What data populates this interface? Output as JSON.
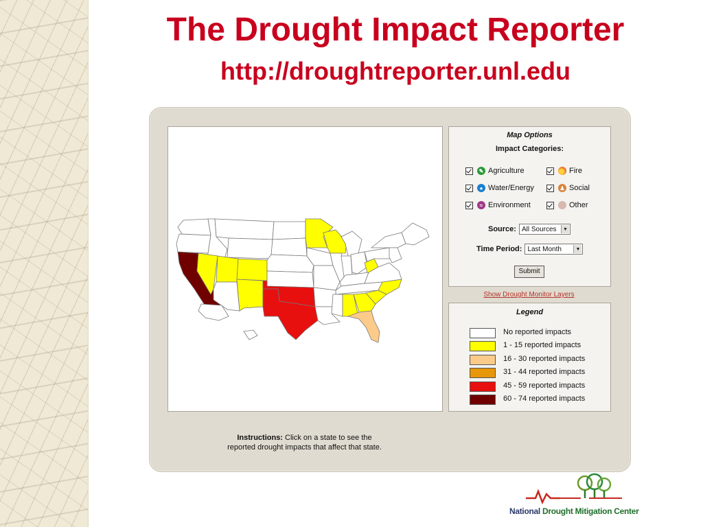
{
  "slide": {
    "title": "The Drought Impact Reporter",
    "url": "http://droughtreporter.unl.edu"
  },
  "map_options": {
    "title": "Map Options",
    "categories_label": "Impact Categories:",
    "categories": [
      {
        "label": "Agriculture",
        "checked": true,
        "icon": "leaf-icon",
        "color": "#2a9a3a"
      },
      {
        "label": "Fire",
        "checked": true,
        "icon": "fire-icon",
        "color": "#e8622a"
      },
      {
        "label": "Water/Energy",
        "checked": true,
        "icon": "water-drop-icon",
        "color": "#1a7fd0"
      },
      {
        "label": "Social",
        "checked": true,
        "icon": "social-icon",
        "color": "#d9843a"
      },
      {
        "label": "Environment",
        "checked": true,
        "icon": "environment-icon",
        "color": "#a0388a"
      },
      {
        "label": "Other",
        "checked": true,
        "icon": "other-icon",
        "color": "#d8b8b0"
      }
    ],
    "source_label": "Source:",
    "source_value": "All Sources",
    "time_label": "Time Period:",
    "time_value": "Last Month",
    "submit_label": "Submit"
  },
  "drought_layers_link": "Show Drought Monitor Layers",
  "legend": {
    "title": "Legend",
    "items": [
      {
        "label": "No reported impacts",
        "color": "#ffffff"
      },
      {
        "label": "1 - 15 reported impacts",
        "color": "#ffff00"
      },
      {
        "label": "16 - 30 reported impacts",
        "color": "#fccb8a"
      },
      {
        "label": "31 - 44 reported impacts",
        "color": "#e8960a"
      },
      {
        "label": "45 - 59 reported impacts",
        "color": "#e80f0f"
      },
      {
        "label": "60 - 74 reported impacts",
        "color": "#700000"
      }
    ]
  },
  "instructions": {
    "prefix": "Instructions:",
    "line1": "Click on a state to see the",
    "line2": "reported drought impacts that affect that state."
  },
  "logo": {
    "part1": "National",
    "part2": "Drought Mitigation Center"
  }
}
